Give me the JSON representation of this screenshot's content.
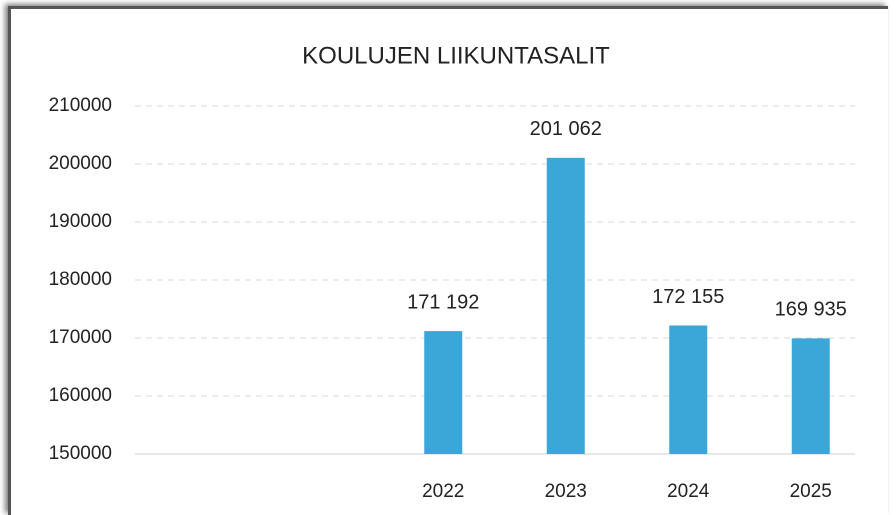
{
  "chart_data": {
    "type": "bar",
    "title": "KOULUJEN LIIKUNTASALIT",
    "categories": [
      null,
      null,
      "2022",
      "2023",
      "2024",
      "2025"
    ],
    "values": [
      null,
      null,
      171192,
      201062,
      172155,
      169935
    ],
    "value_labels": [
      null,
      null,
      "171 192",
      "201 062",
      "172 155",
      "169 935"
    ],
    "color": "#3ba6d8",
    "ylim": [
      150000,
      210000
    ],
    "yticks": [
      150000,
      160000,
      170000,
      180000,
      190000,
      200000,
      210000
    ],
    "grid": true
  }
}
